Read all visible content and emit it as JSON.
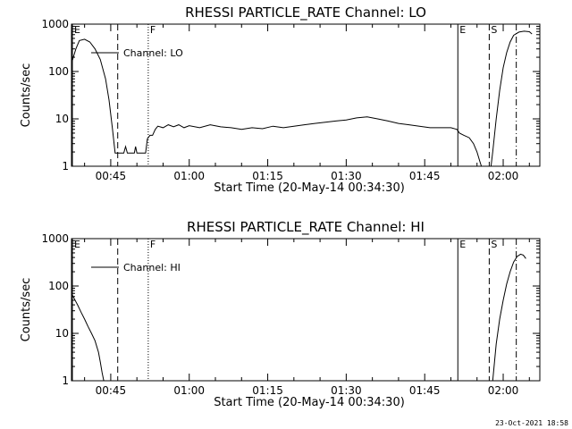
{
  "footer": {
    "timestamp": "23-Oct-2021 18:58"
  },
  "chart_data": [
    {
      "type": "line",
      "title": "RHESSI PARTICLE_RATE Channel: LO",
      "xlabel": "Start Time (20-May-14 00:34:30)",
      "ylabel": "Counts/sec",
      "yscale": "log",
      "ylim": [
        1,
        1000
      ],
      "xlim": [
        "00:37:30",
        "02:07:00"
      ],
      "yticks": [
        "1",
        "10",
        "100",
        "1000"
      ],
      "xticks": [
        "00:45",
        "01:00",
        "01:15",
        "01:30",
        "01:45",
        "02:00"
      ],
      "legend": {
        "position": "top-left"
      },
      "markers": [
        {
          "label": "E",
          "time": "00:37:40",
          "style": "solid"
        },
        {
          "label": "",
          "time": "00:46:20",
          "style": "dashed"
        },
        {
          "label": "F",
          "time": "00:52:10",
          "style": "dotted"
        },
        {
          "label": "E",
          "time": "01:51:20",
          "style": "solid"
        },
        {
          "label": "S",
          "time": "01:57:20",
          "style": "dashed"
        },
        {
          "label": "",
          "time": "02:02:30",
          "style": "dashdot"
        }
      ],
      "series": [
        {
          "name": "Channel: LO",
          "segments": [
            [
              [
                "00:37:30",
                150
              ],
              [
                "00:38:20",
                300
              ],
              [
                "00:39:00",
                450
              ],
              [
                "00:40:00",
                480
              ],
              [
                "00:41:00",
                420
              ],
              [
                "00:42:00",
                300
              ],
              [
                "00:43:00",
                180
              ],
              [
                "00:44:00",
                70
              ],
              [
                "00:44:40",
                25
              ],
              [
                "00:45:20",
                6
              ],
              [
                "00:45:50",
                1.9
              ],
              [
                "00:47:30",
                1.9
              ],
              [
                "00:47:50",
                2.6
              ],
              [
                "00:48:10",
                1.9
              ],
              [
                "00:49:30",
                1.9
              ],
              [
                "00:49:45",
                2.6
              ],
              [
                "00:50:00",
                1.9
              ],
              [
                "00:51:40",
                1.9
              ],
              [
                "00:52:00",
                3.8
              ],
              [
                "00:52:30",
                4.5
              ],
              [
                "00:53:00",
                4.5
              ],
              [
                "00:53:30",
                6
              ],
              [
                "00:54:00",
                7
              ],
              [
                "00:55:00",
                6.5
              ],
              [
                "00:56:00",
                7.5
              ],
              [
                "00:57:00",
                6.8
              ],
              [
                "00:58:00",
                7.5
              ],
              [
                "00:59:00",
                6.5
              ],
              [
                "01:00:00",
                7.2
              ],
              [
                "01:02:00",
                6.5
              ],
              [
                "01:04:00",
                7.5
              ],
              [
                "01:06:00",
                6.8
              ],
              [
                "01:08:00",
                6.5
              ],
              [
                "01:10:00",
                6
              ],
              [
                "01:12:00",
                6.5
              ],
              [
                "01:14:00",
                6.2
              ],
              [
                "01:16:00",
                7
              ],
              [
                "01:18:00",
                6.5
              ],
              [
                "01:20:00",
                7
              ],
              [
                "01:22:00",
                7.5
              ],
              [
                "01:24:00",
                8
              ],
              [
                "01:26:00",
                8.5
              ],
              [
                "01:28:00",
                9
              ],
              [
                "01:30:00",
                9.5
              ],
              [
                "01:32:00",
                10.5
              ],
              [
                "01:34:00",
                11
              ],
              [
                "01:36:00",
                10
              ],
              [
                "01:38:00",
                9
              ],
              [
                "01:40:00",
                8
              ],
              [
                "01:42:00",
                7.5
              ],
              [
                "01:44:00",
                7
              ],
              [
                "01:46:00",
                6.5
              ],
              [
                "01:48:00",
                6.5
              ],
              [
                "01:50:00",
                6.5
              ],
              [
                "01:51:10",
                6
              ],
              [
                "01:51:40",
                5
              ],
              [
                "01:52:30",
                4.5
              ],
              [
                "01:53:30",
                4
              ],
              [
                "01:54:20",
                3
              ],
              [
                "01:55:00",
                2
              ],
              [
                "01:55:30",
                1.3
              ],
              [
                "01:55:50",
                1
              ]
            ],
            [
              [
                "01:57:40",
                1
              ],
              [
                "01:58:00",
                2
              ],
              [
                "01:58:40",
                10
              ],
              [
                "01:59:20",
                40
              ],
              [
                "02:00:00",
                120
              ],
              [
                "02:00:40",
                250
              ],
              [
                "02:01:20",
                420
              ],
              [
                "02:02:00",
                580
              ],
              [
                "02:03:00",
                680
              ],
              [
                "02:04:00",
                710
              ],
              [
                "02:05:00",
                690
              ],
              [
                "02:05:30",
                620
              ]
            ]
          ]
        }
      ]
    },
    {
      "type": "line",
      "title": "RHESSI PARTICLE_RATE Channel: HI",
      "xlabel": "Start Time (20-May-14 00:34:30)",
      "ylabel": "Counts/sec",
      "yscale": "log",
      "ylim": [
        1,
        1000
      ],
      "xlim": [
        "00:37:30",
        "02:07:00"
      ],
      "yticks": [
        "1",
        "10",
        "100",
        "1000"
      ],
      "xticks": [
        "00:45",
        "01:00",
        "01:15",
        "01:30",
        "01:45",
        "02:00"
      ],
      "legend": {
        "position": "top-left"
      },
      "markers": [
        {
          "label": "E",
          "time": "00:37:40",
          "style": "solid"
        },
        {
          "label": "",
          "time": "00:46:20",
          "style": "dashed"
        },
        {
          "label": "F",
          "time": "00:52:10",
          "style": "dotted"
        },
        {
          "label": "E",
          "time": "01:51:20",
          "style": "solid"
        },
        {
          "label": "S",
          "time": "01:57:20",
          "style": "dashed"
        },
        {
          "label": "",
          "time": "02:02:30",
          "style": "dashdot"
        }
      ],
      "series": [
        {
          "name": "Channel: HI",
          "segments": [
            [
              [
                "00:37:30",
                70
              ],
              [
                "00:38:00",
                55
              ],
              [
                "00:38:40",
                40
              ],
              [
                "00:39:20",
                28
              ],
              [
                "00:40:00",
                20
              ],
              [
                "00:40:40",
                14
              ],
              [
                "00:41:20",
                10
              ],
              [
                "00:42:00",
                7
              ],
              [
                "00:42:40",
                4
              ],
              [
                "00:43:00",
                2.5
              ],
              [
                "00:43:20",
                1.5
              ],
              [
                "00:43:40",
                1
              ]
            ],
            [
              [
                "01:58:00",
                1
              ],
              [
                "01:58:20",
                2.5
              ],
              [
                "01:58:40",
                6
              ],
              [
                "01:59:20",
                20
              ],
              [
                "02:00:00",
                50
              ],
              [
                "02:00:40",
                110
              ],
              [
                "02:01:20",
                200
              ],
              [
                "02:02:00",
                320
              ],
              [
                "02:02:40",
                420
              ],
              [
                "02:03:20",
                470
              ],
              [
                "02:03:50",
                450
              ],
              [
                "02:04:20",
                380
              ]
            ]
          ]
        }
      ]
    }
  ]
}
